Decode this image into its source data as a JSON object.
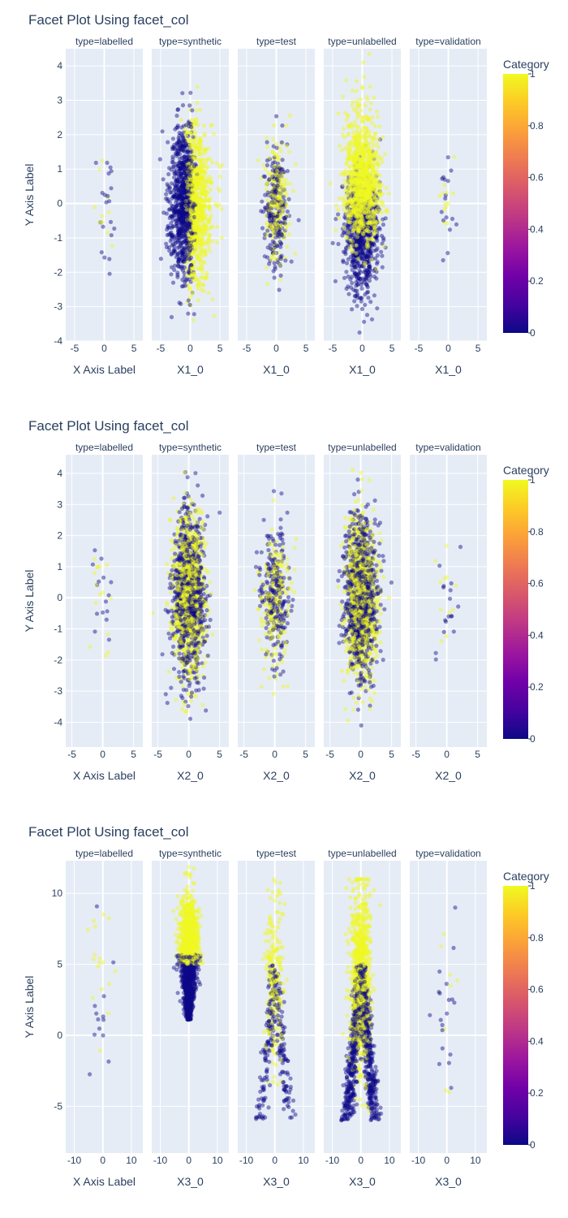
{
  "colors": {
    "panel_bg": "#e5ecf6",
    "grid": "#ffffff",
    "text": "#2a3f5f",
    "class0": "#0d0887",
    "class1": "#f0f921"
  },
  "chart_data": [
    {
      "type": "scatter",
      "title": "Facet Plot Using facet_col",
      "facets": [
        "type=labelled",
        "type=synthetic",
        "type=test",
        "type=unlabelled",
        "type=validation"
      ],
      "xlabels": [
        "X Axis Label",
        "X1_0",
        "X1_0",
        "X1_0",
        "X1_0"
      ],
      "ylabel": "Y Axis Label",
      "xlim": [
        -6.5,
        6.5
      ],
      "ylim": [
        -4,
        4.5
      ],
      "xticks": [
        -5,
        0,
        5
      ],
      "yticks": [
        -4,
        -3,
        -2,
        -1,
        0,
        1,
        2,
        3,
        4
      ],
      "colorbar": {
        "title": "Category",
        "ticks": [
          0,
          0.2,
          0.4,
          0.6,
          0.8,
          1
        ],
        "range": [
          0,
          1
        ]
      },
      "legend": "colorbar right",
      "grid": true,
      "series": [
        {
          "facet": "type=labelled",
          "approx_count": 30,
          "x_mean": 0,
          "x_sd": 1.0,
          "y_mean": -0.2,
          "y_sd": 0.9,
          "class_split": "mixed"
        },
        {
          "facet": "type=synthetic",
          "approx_count": 6000,
          "x_mean": 0,
          "x_sd": 1.6,
          "y_mean": 0,
          "y_sd": 1.1,
          "class_split": "class 0 at x<0, class 1 at x>0"
        },
        {
          "facet": "type=test",
          "approx_count": 800,
          "x_mean": 0,
          "x_sd": 1.0,
          "y_mean": 0,
          "y_sd": 0.9,
          "class_split": "mixed"
        },
        {
          "facet": "type=unlabelled",
          "approx_count": 6000,
          "x_mean": 0,
          "x_sd": 1.5,
          "y_mean": 0,
          "y_sd": 1.2,
          "class_split": "class 1 upper, class 0 lower"
        },
        {
          "facet": "type=validation",
          "approx_count": 30,
          "x_mean": 0,
          "x_sd": 1.0,
          "y_mean": 0,
          "y_sd": 0.9,
          "class_split": "mixed"
        }
      ]
    },
    {
      "type": "scatter",
      "title": "Facet Plot Using facet_col",
      "facets": [
        "type=labelled",
        "type=synthetic",
        "type=test",
        "type=unlabelled",
        "type=validation"
      ],
      "xlabels": [
        "X Axis Label",
        "X2_0",
        "X2_0",
        "X2_0",
        "X2_0"
      ],
      "ylabel": "Y Axis Label",
      "xlim": [
        -6,
        6.5
      ],
      "ylim": [
        -4.8,
        4.6
      ],
      "xticks": [
        -5,
        0,
        5
      ],
      "yticks": [
        -4,
        -3,
        -2,
        -1,
        0,
        1,
        2,
        3,
        4
      ],
      "colorbar": {
        "title": "Category",
        "ticks": [
          0,
          0.2,
          0.4,
          0.6,
          0.8,
          1
        ],
        "range": [
          0,
          1
        ]
      },
      "legend": "colorbar right",
      "grid": true,
      "series": [
        {
          "facet": "type=labelled",
          "approx_count": 30,
          "x_mean": 0,
          "x_sd": 1.0,
          "y_mean": 0,
          "y_sd": 0.9,
          "class_split": "mixed"
        },
        {
          "facet": "type=synthetic",
          "approx_count": 6000,
          "x_mean": 0,
          "x_sd": 1.3,
          "y_mean": 0,
          "y_sd": 1.3,
          "class_split": "mixed"
        },
        {
          "facet": "type=test",
          "approx_count": 800,
          "x_mean": 0,
          "x_sd": 1.2,
          "y_mean": 0,
          "y_sd": 1.1,
          "class_split": "mixed"
        },
        {
          "facet": "type=unlabelled",
          "approx_count": 6000,
          "x_mean": 0,
          "x_sd": 1.3,
          "y_mean": 0,
          "y_sd": 1.3,
          "class_split": "mixed"
        },
        {
          "facet": "type=validation",
          "approx_count": 30,
          "x_mean": 0,
          "x_sd": 1.0,
          "y_mean": 0,
          "y_sd": 0.9,
          "class_split": "mixed"
        }
      ]
    },
    {
      "type": "scatter",
      "title": "Facet Plot Using facet_col",
      "facets": [
        "type=labelled",
        "type=synthetic",
        "type=test",
        "type=unlabelled",
        "type=validation"
      ],
      "xlabels": [
        "X Axis Label",
        "X3_0",
        "X3_0",
        "X3_0",
        "X3_0"
      ],
      "ylabel": "Y Axis Label",
      "xlim": [
        -13,
        14
      ],
      "ylim": [
        -8.3,
        12.3
      ],
      "xticks": [
        -10,
        0,
        10
      ],
      "yticks": [
        -5,
        0,
        5,
        10
      ],
      "colorbar": {
        "title": "Category",
        "ticks": [
          0,
          0.2,
          0.4,
          0.6,
          0.8,
          1
        ],
        "range": [
          0,
          1
        ]
      },
      "legend": "colorbar right",
      "grid": true,
      "series": [
        {
          "facet": "type=labelled",
          "approx_count": 30,
          "x_mean": 0,
          "x_sd": 2.5,
          "y_mean": 3,
          "y_sd": 3,
          "class_split": "class 1 higher y"
        },
        {
          "facet": "type=synthetic",
          "approx_count": 6000,
          "x_mean": 0,
          "x_sd": 1.5,
          "y_mean": 5,
          "y_sd": 2.5,
          "class_split": "class 1 y>5, class 0 cone y<5"
        },
        {
          "facet": "type=test",
          "approx_count": 800,
          "x_mean": 0,
          "x_sd": 2.0,
          "y_mean": 3,
          "y_sd": 3.5,
          "class_split": "class 1 upper, class 0 v-shape lower"
        },
        {
          "facet": "type=unlabelled",
          "approx_count": 6000,
          "x_mean": 0,
          "x_sd": 2.5,
          "y_mean": 2.5,
          "y_sd": 4,
          "class_split": "class 1 upper, class 0 v-shape lower"
        },
        {
          "facet": "type=validation",
          "approx_count": 30,
          "x_mean": 0,
          "x_sd": 2.5,
          "y_mean": 2,
          "y_sd": 3.5,
          "class_split": "class 1 higher y"
        }
      ]
    }
  ]
}
